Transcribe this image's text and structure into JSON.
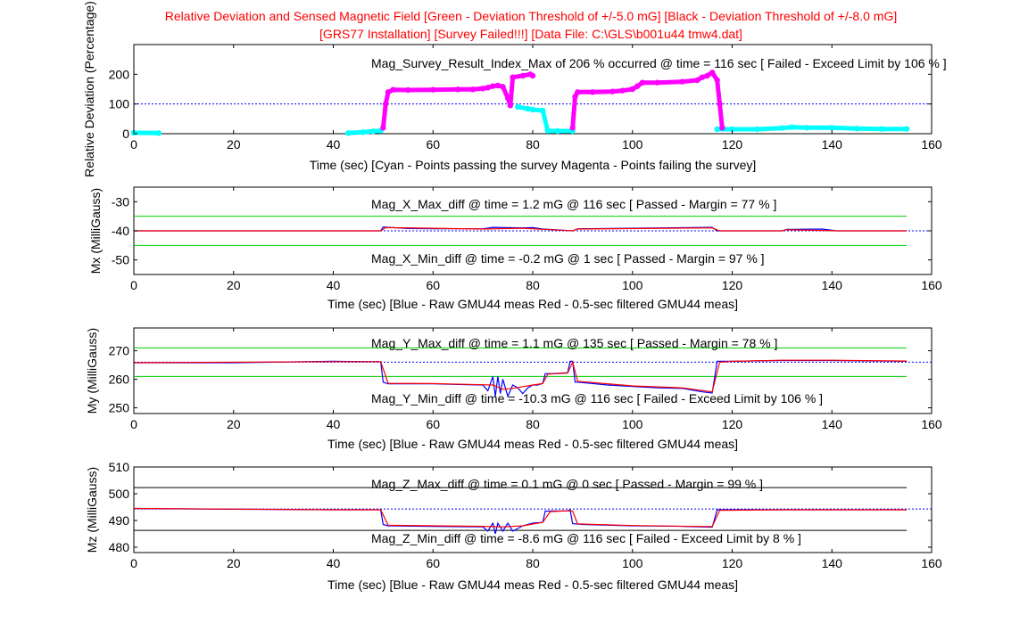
{
  "figure": {
    "title_line1": "Relative Deviation and Sensed Magnetic Field [Green - Deviation Threshold of +/-5.0 mG] [Black - Deviation Threshold of +/-8.0 mG]",
    "title_line2": "[GRS77 Installation] [Survey Failed!!!] [Data File: C:\\GLS\\b001u44 tmw4.dat]",
    "colors": {
      "title": "#ff0000",
      "pass": "#00ffff",
      "fail": "#ff00ff",
      "raw": "#0000ff",
      "filtered": "#ff0000",
      "green_threshold": "#00cc00",
      "black_threshold": "#000000",
      "reference": "#0000ff"
    }
  },
  "chart_data": [
    {
      "id": "relative-deviation",
      "type": "scatter",
      "xlabel": "Time (sec) [Cyan - Points passing the survey   Magenta - Points failing the survey]",
      "ylabel": "Relative Deviation (Percentage)",
      "annotation": "Mag_Survey_Result_Index_Max of   206 % occurred @ time = 116 sec    [ Failed - Exceed Limit by 106 % ]",
      "xlim": [
        0,
        160
      ],
      "ylim": [
        0,
        300
      ],
      "xticks": [
        0,
        20,
        40,
        60,
        80,
        100,
        120,
        140,
        160
      ],
      "yticks": [
        0,
        100,
        200
      ],
      "reference_line": 100,
      "series": [
        {
          "name": "Points passing the survey",
          "color": "#00ffff",
          "segments": [
            [
              [
                0,
                3
              ],
              [
                5,
                2
              ]
            ],
            [
              [
                43,
                2
              ],
              [
                46,
                5
              ],
              [
                48,
                8
              ],
              [
                49.5,
                10
              ]
            ],
            [
              [
                77,
                90
              ],
              [
                79,
                84
              ],
              [
                80,
                81
              ],
              [
                82,
                78
              ],
              [
                83,
                10
              ],
              [
                85,
                9
              ],
              [
                88,
                9
              ]
            ],
            [
              [
                117,
                15
              ],
              [
                120,
                15
              ],
              [
                125,
                15
              ],
              [
                130,
                19
              ],
              [
                132,
                22
              ],
              [
                135,
                20
              ],
              [
                140,
                20
              ],
              [
                145,
                17
              ],
              [
                150,
                16
              ],
              [
                155,
                16
              ]
            ]
          ]
        },
        {
          "name": "Points failing the survey",
          "color": "#ff00ff",
          "segments": [
            [
              [
                50,
                20
              ],
              [
                50.5,
                100
              ],
              [
                51,
                140
              ],
              [
                52,
                148
              ],
              [
                55,
                147
              ],
              [
                60,
                148
              ],
              [
                65,
                149
              ],
              [
                68,
                149
              ],
              [
                70,
                152
              ],
              [
                71,
                155
              ],
              [
                72,
                160
              ],
              [
                73,
                162
              ],
              [
                74,
                158
              ],
              [
                75,
                120
              ],
              [
                75.5,
                95
              ],
              [
                76,
                190
              ],
              [
                78,
                195
              ],
              [
                79.5,
                200
              ],
              [
                80,
                195
              ]
            ],
            [
              [
                88,
                20
              ],
              [
                88.5,
                125
              ],
              [
                89,
                140
              ],
              [
                92,
                140
              ],
              [
                96,
                142
              ],
              [
                98,
                145
              ],
              [
                100,
                150
              ],
              [
                101,
                160
              ],
              [
                102,
                172
              ],
              [
                105,
                172
              ],
              [
                110,
                175
              ],
              [
                113,
                180
              ],
              [
                114,
                190
              ],
              [
                115,
                195
              ],
              [
                116,
                206
              ],
              [
                117,
                180
              ],
              [
                117.5,
                100
              ],
              [
                118,
                20
              ]
            ]
          ]
        }
      ]
    },
    {
      "id": "mx",
      "type": "line",
      "xlabel": "Time (sec) [Blue - Raw GMU44 meas   Red - 0.5-sec filtered GMU44 meas]",
      "ylabel": "Mx (MilliGauss)",
      "annotation_max": "Mag_X_Max_diff @ time =  1.2 mG @  116 sec    [ Passed - Margin = 77 % ]",
      "annotation_min": "Mag_X_Min_diff @ time = -0.2 mG @    1 sec    [ Passed - Margin = 97 % ]",
      "xlim": [
        0,
        160
      ],
      "ylim": [
        -55,
        -25
      ],
      "xticks": [
        0,
        20,
        40,
        60,
        80,
        100,
        120,
        140,
        160
      ],
      "yticks": [
        -50,
        -40,
        -30
      ],
      "reference_line": -40,
      "threshold_lines": [
        -35,
        -45
      ],
      "series": [
        {
          "name": "Raw GMU44 meas",
          "color": "#0000ff",
          "points": [
            [
              0,
              -40
            ],
            [
              20,
              -40
            ],
            [
              40,
              -40
            ],
            [
              49.5,
              -40
            ],
            [
              50,
              -38.7
            ],
            [
              55,
              -39.2
            ],
            [
              60,
              -39.3
            ],
            [
              70,
              -39.3
            ],
            [
              72,
              -38.8
            ],
            [
              78,
              -39
            ],
            [
              80,
              -38.9
            ],
            [
              82,
              -39.4
            ],
            [
              88,
              -40
            ],
            [
              89,
              -39.3
            ],
            [
              100,
              -39.1
            ],
            [
              116,
              -38.8
            ],
            [
              117,
              -40
            ],
            [
              120,
              -40
            ],
            [
              130,
              -40
            ],
            [
              131,
              -39.5
            ],
            [
              138,
              -39.4
            ],
            [
              141,
              -40
            ],
            [
              155,
              -40
            ]
          ]
        },
        {
          "name": "0.5-sec filtered GMU44 meas",
          "color": "#ff0000",
          "points": [
            [
              0,
              -40
            ],
            [
              49.5,
              -40
            ],
            [
              50.5,
              -38.9
            ],
            [
              70,
              -39.4
            ],
            [
              78,
              -39.1
            ],
            [
              88,
              -40
            ],
            [
              89,
              -39.4
            ],
            [
              116,
              -39
            ],
            [
              117.5,
              -40
            ],
            [
              130,
              -40
            ],
            [
              131,
              -39.6
            ],
            [
              141,
              -40
            ],
            [
              155,
              -40
            ]
          ]
        }
      ]
    },
    {
      "id": "my",
      "type": "line",
      "xlabel": "Time (sec) [Blue - Raw GMU44 meas   Red - 0.5-sec filtered GMU44 meas]",
      "ylabel": "My (MilliGauss)",
      "annotation_max": "Mag_Y_Max_diff @ time = 1.1 mG @ 135 sec    [ Passed - Margin = 78 % ]",
      "annotation_min": "Mag_Y_Min_diff @ time = -10.3 mG @  116 sec    [ Failed - Exceed Limit by 106 % ]",
      "xlim": [
        0,
        160
      ],
      "ylim": [
        248,
        278
      ],
      "xticks": [
        0,
        20,
        40,
        60,
        80,
        100,
        120,
        140,
        160
      ],
      "yticks": [
        250,
        260,
        270
      ],
      "reference_line": 266,
      "threshold_lines": [
        271,
        261
      ],
      "series": [
        {
          "name": "Raw GMU44 meas",
          "color": "#0000ff",
          "points": [
            [
              0,
              265.8
            ],
            [
              20,
              265.8
            ],
            [
              40,
              266.3
            ],
            [
              49.5,
              266.2
            ],
            [
              50,
              259
            ],
            [
              51,
              258.4
            ],
            [
              60,
              258.4
            ],
            [
              70,
              258
            ],
            [
              71,
              256
            ],
            [
              72,
              261
            ],
            [
              72.5,
              254
            ],
            [
              73,
              261
            ],
            [
              73.5,
              255
            ],
            [
              74,
              260
            ],
            [
              75,
              254
            ],
            [
              76,
              258
            ],
            [
              77,
              257
            ],
            [
              78,
              255
            ],
            [
              79,
              257
            ],
            [
              80,
              258
            ],
            [
              81,
              258
            ],
            [
              82,
              258.6
            ],
            [
              82.5,
              262
            ],
            [
              84,
              262
            ],
            [
              87,
              262.3
            ],
            [
              87.5,
              266.3
            ],
            [
              88,
              266.3
            ],
            [
              88.5,
              259
            ],
            [
              89,
              259
            ],
            [
              95,
              258
            ],
            [
              100,
              257.5
            ],
            [
              105,
              257
            ],
            [
              110,
              256.8
            ],
            [
              114,
              255.6
            ],
            [
              116,
              255.2
            ],
            [
              117,
              266.3
            ],
            [
              120,
              266.3
            ],
            [
              130,
              266.6
            ],
            [
              140,
              266.6
            ],
            [
              155,
              266.3
            ]
          ]
        },
        {
          "name": "0.5-sec filtered GMU44 meas",
          "color": "#ff0000",
          "points": [
            [
              0,
              265.8
            ],
            [
              40,
              266.2
            ],
            [
              49.5,
              266.2
            ],
            [
              51,
              258.6
            ],
            [
              60,
              258.5
            ],
            [
              70,
              258.1
            ],
            [
              72,
              258
            ],
            [
              74,
              256.5
            ],
            [
              76,
              256.8
            ],
            [
              80,
              258
            ],
            [
              82,
              258.5
            ],
            [
              83,
              261.8
            ],
            [
              87,
              262.2
            ],
            [
              88,
              266
            ],
            [
              89,
              259.3
            ],
            [
              100,
              257.7
            ],
            [
              110,
              257
            ],
            [
              116,
              255.6
            ],
            [
              117.5,
              266
            ],
            [
              120,
              266.3
            ],
            [
              130,
              266.7
            ],
            [
              140,
              266.7
            ],
            [
              155,
              266.4
            ]
          ]
        }
      ]
    },
    {
      "id": "mz",
      "type": "line",
      "xlabel": "Time (sec) [Blue - Raw GMU44 meas   Red - 0.5-sec filtered GMU44 meas]",
      "ylabel": "Mz (MilliGauss)",
      "annotation_max": "Mag_Z_Max_diff @ time = 0.1 mG @ 0 sec    [ Passed - Margin = 99 % ]",
      "annotation_min": "Mag_Z_Min_diff @ time = -8.6 mG @ 116 sec    [ Failed - Exceed Limit by 8 % ]",
      "xlim": [
        0,
        160
      ],
      "ylim": [
        478,
        510
      ],
      "xticks": [
        0,
        20,
        40,
        60,
        80,
        100,
        120,
        140,
        160
      ],
      "yticks": [
        480,
        490,
        500,
        510
      ],
      "reference_line": 494.3,
      "threshold_lines": [
        502.3,
        486.3
      ],
      "series": [
        {
          "name": "Raw GMU44 meas",
          "color": "#0000ff",
          "points": [
            [
              0,
              494.5
            ],
            [
              20,
              494.2
            ],
            [
              40,
              494
            ],
            [
              49.5,
              494
            ],
            [
              50,
              488.5
            ],
            [
              51,
              488
            ],
            [
              60,
              487.8
            ],
            [
              70,
              487.6
            ],
            [
              71,
              486
            ],
            [
              72,
              489
            ],
            [
              72.5,
              485
            ],
            [
              73,
              489
            ],
            [
              74,
              486
            ],
            [
              75,
              489
            ],
            [
              76,
              486
            ],
            [
              78,
              488
            ],
            [
              80,
              489
            ],
            [
              82,
              489.3
            ],
            [
              82.5,
              493.5
            ],
            [
              87,
              493.6
            ],
            [
              87.5,
              494
            ],
            [
              88,
              488.8
            ],
            [
              90,
              488.5
            ],
            [
              100,
              488
            ],
            [
              110,
              487.8
            ],
            [
              116,
              487.5
            ],
            [
              117,
              494
            ],
            [
              120,
              494
            ],
            [
              130,
              494
            ],
            [
              140,
              494
            ],
            [
              155,
              494
            ]
          ]
        },
        {
          "name": "0.5-sec filtered GMU44 meas",
          "color": "#ff0000",
          "points": [
            [
              0,
              494.5
            ],
            [
              40,
              494
            ],
            [
              49.5,
              494
            ],
            [
              51,
              488.2
            ],
            [
              60,
              488
            ],
            [
              70,
              487.8
            ],
            [
              74,
              487.6
            ],
            [
              78,
              488
            ],
            [
              82,
              489.3
            ],
            [
              83.5,
              493.3
            ],
            [
              87,
              493.6
            ],
            [
              88,
              493.5
            ],
            [
              89,
              488.7
            ],
            [
              100,
              488.1
            ],
            [
              116,
              487.7
            ],
            [
              117.5,
              493.8
            ],
            [
              130,
              494
            ],
            [
              155,
              494
            ]
          ]
        }
      ]
    }
  ]
}
